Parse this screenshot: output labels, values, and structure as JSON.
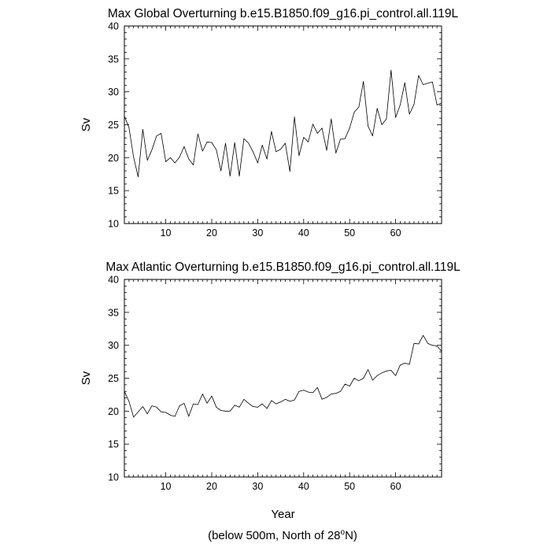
{
  "footer_note_parts": {
    "pre": "(below 500m, North of 28",
    "sup": "o",
    "post": "N)"
  },
  "chart_data": [
    {
      "type": "line",
      "title": "Max Global Overturning b.e15.B1850.f09_g16.pi_control.all.119L",
      "xlabel": "",
      "ylabel": "Sv",
      "xlim": [
        1,
        70
      ],
      "ylim": [
        10,
        40
      ],
      "xticks": [
        10,
        20,
        30,
        40,
        50,
        60
      ],
      "yticks": [
        10,
        15,
        20,
        25,
        30,
        35,
        40
      ],
      "grid": false,
      "series": [
        {
          "x": [
            1,
            2,
            3,
            4,
            5,
            6,
            7,
            8,
            9,
            10,
            11,
            12,
            13,
            14,
            15,
            16,
            17,
            18,
            19,
            20,
            21,
            22,
            23,
            24,
            25,
            26,
            27,
            28,
            29,
            30,
            31,
            32,
            33,
            34,
            35,
            36,
            37,
            38,
            39,
            40,
            41,
            42,
            43,
            44,
            45,
            46,
            47,
            48,
            49,
            50,
            51,
            52,
            53,
            54,
            55,
            56,
            57,
            58,
            59,
            60,
            61,
            62,
            63,
            64,
            65,
            66,
            67,
            68,
            69,
            70
          ],
          "values": [
            26.3,
            24.6,
            20.1,
            17.1,
            24.3,
            19.6,
            21.2,
            23.3,
            23.7,
            19.4,
            20.0,
            19.2,
            20.1,
            21.7,
            19.8,
            18.9,
            23.6,
            21.0,
            22.4,
            22.3,
            21.2,
            18.0,
            22.2,
            17.2,
            22.3,
            17.2,
            22.9,
            22.2,
            20.9,
            19.2,
            21.9,
            19.8,
            24.0,
            20.9,
            21.3,
            22.2,
            17.9,
            26.2,
            20.3,
            23.1,
            22.4,
            25.1,
            23.7,
            24.5,
            21.1,
            25.9,
            20.7,
            22.8,
            22.9,
            24.5,
            26.9,
            27.7,
            31.6,
            24.8,
            23.3,
            27.5,
            25.0,
            25.9,
            33.3,
            26.1,
            28.0,
            31.4,
            26.6,
            28.1,
            32.5,
            31.1,
            31.3,
            31.5,
            28.0,
            28.3
          ]
        }
      ]
    },
    {
      "type": "line",
      "title": "Max Atlantic Overturning b.e15.B1850.f09_g16.pi_control.all.119L",
      "xlabel": "Year",
      "ylabel": "Sv",
      "xlim": [
        1,
        70
      ],
      "ylim": [
        10,
        40
      ],
      "xticks": [
        10,
        20,
        30,
        40,
        50,
        60
      ],
      "yticks": [
        10,
        15,
        20,
        25,
        30,
        35,
        40
      ],
      "grid": false,
      "series": [
        {
          "x": [
            1,
            2,
            3,
            4,
            5,
            6,
            7,
            8,
            9,
            10,
            11,
            12,
            13,
            14,
            15,
            16,
            17,
            18,
            19,
            20,
            21,
            22,
            23,
            24,
            25,
            26,
            27,
            28,
            29,
            30,
            31,
            32,
            33,
            34,
            35,
            36,
            37,
            38,
            39,
            40,
            41,
            42,
            43,
            44,
            45,
            46,
            47,
            48,
            49,
            50,
            51,
            52,
            53,
            54,
            55,
            56,
            57,
            58,
            59,
            60,
            61,
            62,
            63,
            64,
            65,
            66,
            67,
            68,
            69,
            70
          ],
          "values": [
            23.0,
            21.5,
            19.1,
            19.9,
            20.7,
            19.6,
            20.8,
            20.6,
            19.9,
            19.8,
            19.4,
            19.2,
            20.8,
            21.2,
            19.2,
            21.1,
            21.0,
            22.6,
            21.2,
            22.3,
            20.6,
            20.1,
            20.0,
            20.0,
            20.9,
            20.6,
            21.8,
            21.2,
            20.7,
            20.6,
            21.1,
            20.4,
            21.6,
            21.1,
            21.4,
            21.8,
            21.5,
            21.7,
            23.0,
            23.2,
            22.9,
            22.8,
            23.6,
            21.8,
            22.1,
            22.6,
            22.7,
            23.0,
            24.1,
            23.8,
            25.0,
            24.6,
            25.0,
            26.3,
            24.7,
            25.4,
            25.8,
            26.1,
            26.2,
            25.4,
            27.0,
            27.3,
            27.1,
            30.3,
            30.2,
            31.5,
            30.3,
            30.0,
            29.9,
            29.1
          ]
        }
      ]
    }
  ]
}
